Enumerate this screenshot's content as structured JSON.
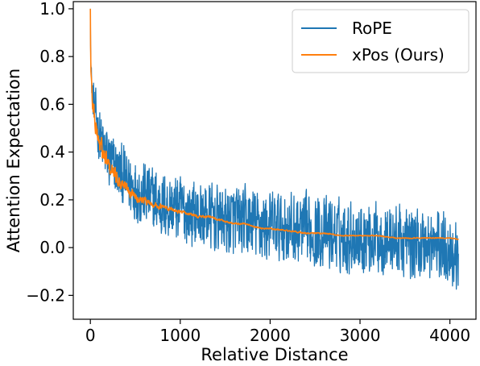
{
  "chart_data": {
    "type": "line",
    "xlabel": "Relative Distance",
    "ylabel": "Attention Expectation",
    "xlim": [
      -190,
      4290
    ],
    "ylim": [
      -0.3,
      1.03
    ],
    "x_ticks": [
      0,
      1000,
      2000,
      3000,
      4000
    ],
    "x_tick_labels": [
      "0",
      "1000",
      "2000",
      "3000",
      "4000"
    ],
    "y_ticks": [
      -0.2,
      0.0,
      0.2,
      0.4,
      0.6,
      0.8,
      1.0
    ],
    "y_tick_labels": [
      "−0.2",
      "0.0",
      "0.2",
      "0.4",
      "0.6",
      "0.8",
      "1.0"
    ],
    "grid": false,
    "legend_position": "top-right",
    "series": [
      {
        "name": "RoPE",
        "color": "#1f77b4",
        "x": [
          0,
          5,
          15,
          30,
          60,
          100,
          150,
          200,
          300,
          400,
          500,
          600,
          700,
          800,
          900,
          1000,
          1100,
          1200,
          1300,
          1400,
          1500,
          1600,
          1700,
          1800,
          1900,
          2000,
          2200,
          2400,
          2600,
          2800,
          3000,
          3200,
          3400,
          3600,
          3800,
          4000,
          4096
        ],
        "mean": [
          1.0,
          0.78,
          0.68,
          0.62,
          0.55,
          0.47,
          0.41,
          0.37,
          0.32,
          0.28,
          0.25,
          0.22,
          0.2,
          0.18,
          0.17,
          0.16,
          0.15,
          0.14,
          0.13,
          0.12,
          0.11,
          0.11,
          0.1,
          0.1,
          0.09,
          0.09,
          0.08,
          0.07,
          0.06,
          0.05,
          0.05,
          0.04,
          0.03,
          0.02,
          0.01,
          0.0,
          -0.05
        ],
        "spread": [
          0.0,
          0.03,
          0.06,
          0.08,
          0.1,
          0.11,
          0.12,
          0.12,
          0.12,
          0.12,
          0.13,
          0.13,
          0.13,
          0.13,
          0.13,
          0.13,
          0.13,
          0.13,
          0.13,
          0.13,
          0.13,
          0.14,
          0.14,
          0.14,
          0.14,
          0.14,
          0.14,
          0.14,
          0.14,
          0.14,
          0.14,
          0.14,
          0.14,
          0.14,
          0.14,
          0.14,
          0.14
        ]
      },
      {
        "name": "xPos (Ours)",
        "color": "#ff7f0e",
        "x": [
          0,
          5,
          15,
          30,
          60,
          100,
          150,
          200,
          300,
          400,
          500,
          600,
          700,
          800,
          900,
          1000,
          1100,
          1200,
          1300,
          1400,
          1500,
          1600,
          1700,
          1800,
          1900,
          2000,
          2200,
          2400,
          2600,
          2800,
          3000,
          3200,
          3400,
          3600,
          3800,
          4000,
          4096
        ],
        "mean": [
          1.0,
          0.75,
          0.65,
          0.59,
          0.51,
          0.44,
          0.38,
          0.34,
          0.29,
          0.25,
          0.22,
          0.2,
          0.18,
          0.17,
          0.16,
          0.15,
          0.14,
          0.13,
          0.13,
          0.12,
          0.11,
          0.1,
          0.1,
          0.09,
          0.08,
          0.08,
          0.07,
          0.06,
          0.06,
          0.05,
          0.05,
          0.05,
          0.04,
          0.04,
          0.04,
          0.04,
          0.035
        ],
        "spread": [
          0.0,
          0.03,
          0.06,
          0.06,
          0.05,
          0.05,
          0.05,
          0.04,
          0.03,
          0.025,
          0.02,
          0.015,
          0.012,
          0.01,
          0.008,
          0.007,
          0.006,
          0.006,
          0.005,
          0.005,
          0.004,
          0.004,
          0.004,
          0.003,
          0.003,
          0.003,
          0.003,
          0.003,
          0.003,
          0.002,
          0.002,
          0.002,
          0.002,
          0.002,
          0.002,
          0.002,
          0.002
        ]
      }
    ]
  }
}
